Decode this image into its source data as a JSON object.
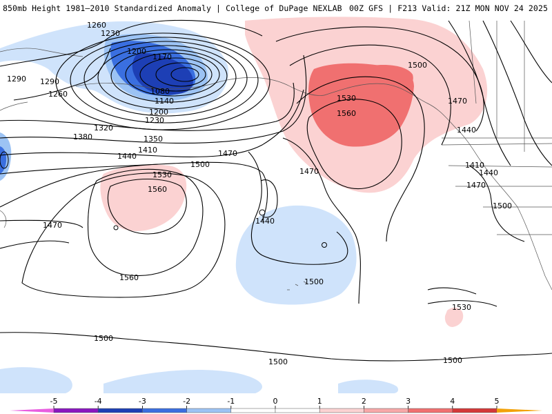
{
  "header": {
    "left": "850mb Height 1981–2010 Standardized Anomaly | College of DuPage NEXLAB",
    "right": "00Z GFS | F213 Valid: 21Z MON NOV 24 2025"
  },
  "colors": {
    "neg5": "#e85ee0",
    "neg4": "#8a17c0",
    "neg3": "#1d3fb5",
    "neg2": "#3a6fe0",
    "neg1": "#9cc3f4",
    "neg0": "#cfe3fb",
    "zero": "#ffffff",
    "pos0": "#fbd2d2",
    "pos1": "#f7a8a8",
    "pos2": "#f07070",
    "pos3": "#d43838",
    "pos4": "#b80c0c",
    "pos5": "#f2a20a"
  },
  "colorbar": {
    "ticks": [
      "-5",
      "-4",
      "-3",
      "-2",
      "-1",
      "0",
      "1",
      "2",
      "3",
      "4",
      "5"
    ]
  },
  "map": {
    "labels": [
      {
        "text": "1260"
      },
      {
        "text": "1230"
      },
      {
        "text": "1200"
      },
      {
        "text": "1170"
      },
      {
        "text": "1080"
      },
      {
        "text": "1140"
      },
      {
        "text": "1200"
      },
      {
        "text": "1230"
      },
      {
        "text": "1290"
      },
      {
        "text": "1320"
      },
      {
        "text": "1350"
      },
      {
        "text": "1380"
      },
      {
        "text": "1410"
      },
      {
        "text": "1440"
      },
      {
        "text": "1470"
      },
      {
        "text": "1500"
      },
      {
        "text": "1530"
      },
      {
        "text": "1560"
      },
      {
        "text": "1560"
      },
      {
        "text": "1470"
      },
      {
        "text": "1440"
      },
      {
        "text": "1500"
      },
      {
        "text": "1470"
      },
      {
        "text": "1530"
      },
      {
        "text": "1560"
      },
      {
        "text": "1500"
      },
      {
        "text": "1470"
      },
      {
        "text": "1440"
      },
      {
        "text": "1410"
      },
      {
        "text": "1440"
      },
      {
        "text": "1470"
      },
      {
        "text": "1500"
      },
      {
        "text": "1530"
      },
      {
        "text": "1500"
      },
      {
        "text": "1500"
      },
      {
        "text": "1500"
      },
      {
        "text": "1290"
      },
      {
        "text": "1260"
      }
    ]
  }
}
